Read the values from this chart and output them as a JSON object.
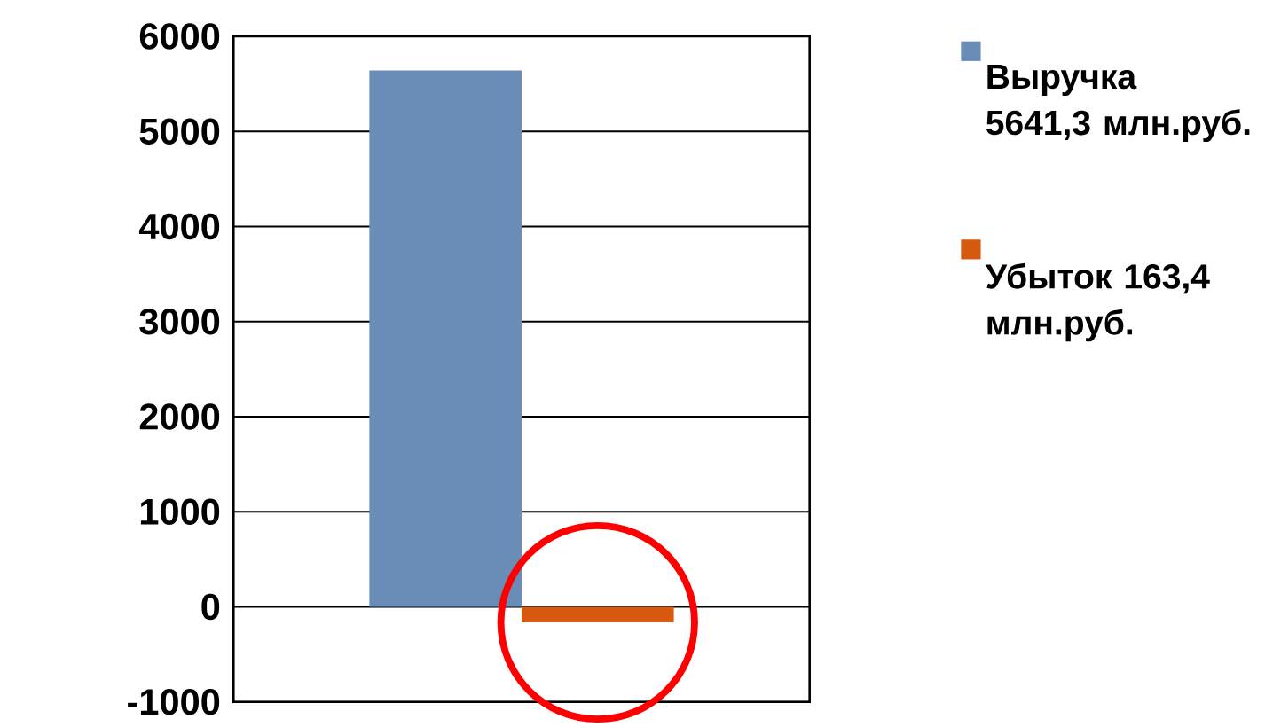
{
  "chart_data": {
    "type": "bar",
    "categories": [
      null
    ],
    "series": [
      {
        "name": "Выручка 5641,3 млн.руб.",
        "color": "#6a8db8",
        "values": [
          5641.3
        ]
      },
      {
        "name": "Убыток 163,4 млн.руб.",
        "color": "#d55a10",
        "values": [
          -163.4
        ]
      }
    ],
    "ylim": [
      -1000,
      6000
    ],
    "yticks": [
      -1000,
      0,
      1000,
      2000,
      3000,
      4000,
      5000,
      6000
    ],
    "grid": "y",
    "legend": "right"
  }
}
